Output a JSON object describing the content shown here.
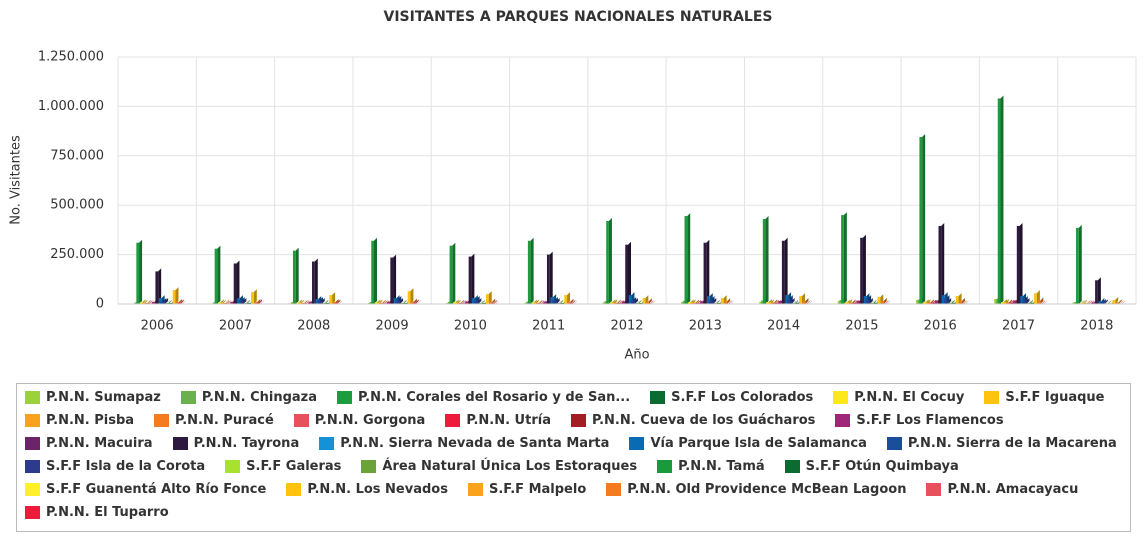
{
  "chart_data": {
    "type": "bar",
    "title": "VISITANTES A PARQUES NACIONALES NATURALES",
    "x_label": "Año",
    "y_label": "No. Visitantes",
    "categories": [
      "2006",
      "2007",
      "2008",
      "2009",
      "2010",
      "2011",
      "2012",
      "2013",
      "2014",
      "2015",
      "2016",
      "2017",
      "2018"
    ],
    "ylim": [
      0,
      1250000
    ],
    "yticks": [
      0,
      {
        "value": 250000,
        "label": "250.000"
      },
      {
        "value": 500000,
        "label": "500.000"
      },
      {
        "value": 750000,
        "label": "750.000"
      },
      {
        "value": 1000000,
        "label": "1.000.000"
      },
      {
        "value": 1250000,
        "label": "1.250.000"
      }
    ],
    "grid": true,
    "series": [
      {
        "name": "P.N.N. Sumapaz",
        "color": "#9bd13b",
        "values": [
          3000,
          3000,
          4000,
          5000,
          5000,
          6000,
          8000,
          10000,
          12000,
          14000,
          20000,
          25000,
          8000
        ]
      },
      {
        "name": "P.N.N. Chingaza",
        "color": "#6ab04c",
        "values": [
          8000,
          8000,
          9000,
          10000,
          11000,
          12000,
          14000,
          16000,
          18000,
          20000,
          22000,
          25000,
          10000
        ]
      },
      {
        "name": "P.N.N. Corales del Rosario y de San...",
        "color": "#1e9b3f",
        "values": [
          310000,
          280000,
          270000,
          320000,
          295000,
          320000,
          420000,
          445000,
          430000,
          450000,
          845000,
          1040000,
          385000
        ]
      },
      {
        "name": "S.F.F Los Colorados",
        "color": "#0b6b30",
        "values": [
          1000,
          1000,
          1000,
          1000,
          1000,
          1000,
          1000,
          1000,
          1000,
          1000,
          1000,
          1000,
          1000
        ]
      },
      {
        "name": "P.N.N. El Cocuy",
        "color": "#ffe81a",
        "values": [
          9000,
          9000,
          8000,
          9000,
          8000,
          8000,
          9000,
          9000,
          10000,
          8000,
          9000,
          10000,
          5000
        ]
      },
      {
        "name": "S.F.F Iguaque",
        "color": "#ffc20e",
        "values": [
          6000,
          6000,
          6000,
          7000,
          7000,
          7000,
          8000,
          8000,
          8000,
          9000,
          9000,
          10000,
          5000
        ]
      },
      {
        "name": "P.N.N. Pisba",
        "color": "#f9a21b",
        "values": [
          500,
          500,
          500,
          500,
          500,
          500,
          500,
          500,
          500,
          500,
          500,
          500,
          500
        ]
      },
      {
        "name": "P.N.N. Puracé",
        "color": "#f47b20",
        "values": [
          5000,
          5000,
          5000,
          6000,
          6000,
          6000,
          7000,
          7000,
          8000,
          8000,
          9000,
          9000,
          4000
        ]
      },
      {
        "name": "P.N.N. Gorgona",
        "color": "#e8505b",
        "values": [
          4000,
          4000,
          4000,
          4000,
          4000,
          4000,
          4000,
          5000,
          5000,
          5000,
          6000,
          6000,
          3000
        ]
      },
      {
        "name": "P.N.N. Utría",
        "color": "#ee1c3a",
        "values": [
          2000,
          2000,
          3000,
          3000,
          3000,
          3000,
          4000,
          4000,
          5000,
          5000,
          6000,
          6000,
          3000
        ]
      },
      {
        "name": "P.N.N. Cueva de los Guácharos",
        "color": "#a51d24",
        "values": [
          3000,
          3000,
          3000,
          3000,
          3000,
          3000,
          3000,
          3000,
          3000,
          4000,
          4000,
          4000,
          2000
        ]
      },
      {
        "name": "S.F.F Los Flamencos",
        "color": "#a0267a",
        "values": [
          10000,
          10000,
          10000,
          11000,
          12000,
          12000,
          13000,
          14000,
          15000,
          16000,
          18000,
          18000,
          8000
        ]
      },
      {
        "name": "P.N.N. Macuira",
        "color": "#6b2468",
        "values": [
          1000,
          1000,
          1000,
          1000,
          1000,
          1000,
          1000,
          1000,
          1000,
          1000,
          1000,
          1000,
          1000
        ]
      },
      {
        "name": "P.N.N. Tayrona",
        "color": "#2d1a3e",
        "values": [
          165000,
          205000,
          215000,
          235000,
          240000,
          250000,
          300000,
          310000,
          320000,
          335000,
          395000,
          395000,
          120000
        ]
      },
      {
        "name": "P.N.N. Sierra Nevada de Santa Marta",
        "color": "#1591d8",
        "values": [
          2000,
          2000,
          2000,
          2000,
          2000,
          2000,
          3000,
          3000,
          3000,
          3000,
          3000,
          3000,
          2000
        ]
      },
      {
        "name": "Vía Parque Isla de Salamanca",
        "color": "#0a6bb5",
        "values": [
          30000,
          30000,
          25000,
          30000,
          30000,
          35000,
          45000,
          40000,
          45000,
          40000,
          45000,
          40000,
          15000
        ]
      },
      {
        "name": "P.N.N. Sierra de la Macarena",
        "color": "#1a4d9c",
        "values": [
          15000,
          20000,
          20000,
          25000,
          25000,
          20000,
          20000,
          25000,
          30000,
          30000,
          30000,
          25000,
          10000
        ]
      },
      {
        "name": "S.F.F Isla de la Corota",
        "color": "#2e3a8c",
        "values": [
          15000,
          15000,
          15000,
          15000,
          15000,
          15000,
          15000,
          15000,
          15000,
          15000,
          15000,
          15000,
          8000
        ]
      },
      {
        "name": "S.F.F Galeras",
        "color": "#a6e22e",
        "values": [
          2000,
          2000,
          2000,
          2000,
          2000,
          2000,
          2000,
          2000,
          2000,
          2000,
          2000,
          2000,
          1000
        ]
      },
      {
        "name": "Área Natural Única Los Estoraques",
        "color": "#6aa33a",
        "values": [
          5000,
          5000,
          5000,
          5000,
          5000,
          5000,
          5000,
          5000,
          5000,
          5000,
          6000,
          6000,
          3000
        ]
      },
      {
        "name": "P.N.N. Tamá",
        "color": "#1a9a3c",
        "values": [
          500,
          500,
          500,
          500,
          500,
          500,
          500,
          500,
          500,
          500,
          500,
          500,
          500
        ]
      },
      {
        "name": "S.F.F Otún Quimbaya",
        "color": "#0c6b30",
        "values": [
          5000,
          5000,
          5000,
          5000,
          5000,
          5000,
          5000,
          5000,
          6000,
          6000,
          6000,
          6000,
          3000
        ]
      },
      {
        "name": "S.F.F Guanentá Alto Río Fonce",
        "color": "#fff02a",
        "values": [
          1000,
          1000,
          1000,
          1000,
          1000,
          1000,
          1000,
          1000,
          1000,
          1000,
          1000,
          1000,
          1000
        ]
      },
      {
        "name": "P.N.N. Los Nevados",
        "color": "#ffc20e",
        "values": [
          70000,
          60000,
          45000,
          65000,
          50000,
          45000,
          30000,
          30000,
          40000,
          35000,
          40000,
          55000,
          20000
        ]
      },
      {
        "name": "S.F.F Malpelo",
        "color": "#f9a21b",
        "values": [
          500,
          500,
          500,
          500,
          500,
          500,
          500,
          500,
          500,
          500,
          500,
          500,
          500
        ]
      },
      {
        "name": "P.N.N. Old Providence McBean Lagoon",
        "color": "#f47b20",
        "values": [
          10000,
          10000,
          10000,
          12000,
          12000,
          12000,
          14000,
          14000,
          15000,
          15000,
          16000,
          18000,
          8000
        ]
      },
      {
        "name": "P.N.N. Amacayacu",
        "color": "#e8505b",
        "values": [
          8000,
          8000,
          8000,
          8000,
          5000,
          5000,
          3000,
          3000,
          3000,
          3000,
          3000,
          3000,
          2000
        ]
      },
      {
        "name": "P.N.N. El Tuparro",
        "color": "#ee1c3a",
        "values": [
          1000,
          1000,
          1000,
          1000,
          1000,
          1000,
          1000,
          1000,
          1000,
          1000,
          1000,
          1000,
          1000
        ]
      }
    ]
  }
}
